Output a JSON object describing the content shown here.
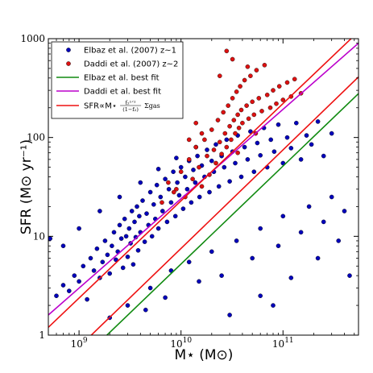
{
  "chart_data": {
    "type": "scatter",
    "title": "",
    "xlabel": "M⋆ (M⊙)",
    "ylabel": "SFR (M⊙ yr⁻¹)",
    "xscale": "log",
    "yscale": "log",
    "xlim": [
      500000000.0,
      550000000000.0
    ],
    "ylim": [
      1,
      1000
    ],
    "x_ticks": [
      {
        "value": 1000000000.0,
        "base": "10",
        "exp": "9"
      },
      {
        "value": 10000000000.0,
        "base": "10",
        "exp": "10"
      },
      {
        "value": 100000000000.0,
        "base": "10",
        "exp": "11"
      }
    ],
    "y_ticks": [
      {
        "value": 1,
        "label": "1"
      },
      {
        "value": 10,
        "label": "10"
      },
      {
        "value": 100,
        "label": "100"
      },
      {
        "value": 1000,
        "label": "1000"
      }
    ],
    "grid": false,
    "legend_position": "top-left",
    "colors": {
      "elbaz": "#0000bb",
      "daddi": "#dd1111",
      "green": "#108a10",
      "magenta": "#bb00cc",
      "red": "#ee1111"
    },
    "scatter_series": [
      {
        "name": "Elbaz et al. (2007) z~1",
        "marker_color": "#0000bb",
        "points": [
          [
            600000000.0,
            2.5
          ],
          [
            700000000.0,
            3.2
          ],
          [
            800000000.0,
            2.8
          ],
          [
            900000000.0,
            4.0
          ],
          [
            1000000000.0,
            3.5
          ],
          [
            1100000000.0,
            5.0
          ],
          [
            1200000000.0,
            2.3
          ],
          [
            1300000000.0,
            6.0
          ],
          [
            1400000000.0,
            4.5
          ],
          [
            1500000000.0,
            7.5
          ],
          [
            1600000000.0,
            3.8
          ],
          [
            1700000000.0,
            5.5
          ],
          [
            1800000000.0,
            9.0
          ],
          [
            1900000000.0,
            6.5
          ],
          [
            2000000000.0,
            4.2
          ],
          [
            2100000000.0,
            8.0
          ],
          [
            2200000000.0,
            11
          ],
          [
            2300000000.0,
            5.8
          ],
          [
            2400000000.0,
            7.0
          ],
          [
            2500000000.0,
            13
          ],
          [
            2600000000.0,
            9.5
          ],
          [
            2700000000.0,
            4.8
          ],
          [
            2800000000.0,
            15
          ],
          [
            2900000000.0,
            10
          ],
          [
            3000000000.0,
            6.2
          ],
          [
            3100000000.0,
            12
          ],
          [
            3200000000.0,
            8.5
          ],
          [
            3300000000.0,
            18
          ],
          [
            3400000000.0,
            5.2
          ],
          [
            3500000000.0,
            14
          ],
          [
            3600000000.0,
            9.8
          ],
          [
            3700000000.0,
            20
          ],
          [
            3800000000.0,
            7.2
          ],
          [
            3900000000.0,
            16
          ],
          [
            4000000000.0,
            11
          ],
          [
            4200000000.0,
            23
          ],
          [
            4400000000.0,
            8.8
          ],
          [
            4600000000.0,
            17
          ],
          [
            4800000000.0,
            13
          ],
          [
            5000000000.0,
            28
          ],
          [
            5200000000.0,
            10
          ],
          [
            5400000000.0,
            21
          ],
          [
            5600000000.0,
            15
          ],
          [
            5800000000.0,
            33
          ],
          [
            6000000000.0,
            12
          ],
          [
            6300000000.0,
            25
          ],
          [
            6600000000.0,
            18
          ],
          [
            7000000000.0,
            38
          ],
          [
            7300000000.0,
            14
          ],
          [
            7600000000.0,
            30
          ],
          [
            8000000000.0,
            22
          ],
          [
            8400000000.0,
            45
          ],
          [
            8800000000.0,
            16
          ],
          [
            9200000000.0,
            35
          ],
          [
            9600000000.0,
            26
          ],
          [
            10000000000.0,
            50
          ],
          [
            10500000000.0,
            19
          ],
          [
            11000000000.0,
            40
          ],
          [
            11500000000.0,
            30
          ],
          [
            12000000000.0,
            58
          ],
          [
            12600000000.0,
            22
          ],
          [
            13200000000.0,
            47
          ],
          [
            13800000000.0,
            35
          ],
          [
            14500000000.0,
            65
          ],
          [
            15200000000.0,
            25
          ],
          [
            16000000000.0,
            52
          ],
          [
            17000000000.0,
            40
          ],
          [
            18000000000.0,
            75
          ],
          [
            19000000000.0,
            28
          ],
          [
            20000000000.0,
            58
          ],
          [
            21000000000.0,
            45
          ],
          [
            22000000000.0,
            85
          ],
          [
            23500000000.0,
            32
          ],
          [
            25000000000.0,
            65
          ],
          [
            26500000000.0,
            50
          ],
          [
            28000000000.0,
            95
          ],
          [
            30000000000.0,
            36
          ],
          [
            32000000000.0,
            72
          ],
          [
            34000000000.0,
            55
          ],
          [
            36000000000.0,
            105
          ],
          [
            39000000000.0,
            40
          ],
          [
            42000000000.0,
            80
          ],
          [
            45000000000.0,
            60
          ],
          [
            48000000000.0,
            115
          ],
          [
            52000000000.0,
            45
          ],
          [
            56000000000.0,
            88
          ],
          [
            60000000000.0,
            66
          ],
          [
            65000000000.0,
            125
          ],
          [
            70000000000.0,
            50
          ],
          [
            76000000000.0,
            95
          ],
          [
            82000000000.0,
            72
          ],
          [
            90000000000.0,
            135
          ],
          [
            100000000000.0,
            55
          ],
          [
            110000000000.0,
            100
          ],
          [
            120000000000.0,
            78
          ],
          [
            135000000000.0,
            140
          ],
          [
            150000000000.0,
            60
          ],
          [
            170000000000.0,
            105
          ],
          [
            190000000000.0,
            85
          ],
          [
            220000000000.0,
            145
          ],
          [
            250000000000.0,
            65
          ],
          [
            300000000000.0,
            110
          ],
          [
            2000000000.0,
            1.5
          ],
          [
            3000000000.0,
            2.0
          ],
          [
            5000000000.0,
            3.0
          ],
          [
            8000000000.0,
            4.5
          ],
          [
            12000000000.0,
            5.5
          ],
          [
            20000000000.0,
            7.0
          ],
          [
            35000000000.0,
            9.0
          ],
          [
            60000000000.0,
            12
          ],
          [
            100000000000.0,
            16
          ],
          [
            180000000000.0,
            20
          ],
          [
            300000000000.0,
            25
          ],
          [
            4500000000.0,
            1.8
          ],
          [
            7000000000.0,
            2.4
          ],
          [
            15000000000.0,
            3.5
          ],
          [
            25000000000.0,
            4.0
          ],
          [
            50000000000.0,
            6.0
          ],
          [
            90000000000.0,
            8.0
          ],
          [
            150000000000.0,
            11
          ],
          [
            250000000000.0,
            14
          ],
          [
            60000000000.0,
            2.5
          ],
          [
            120000000000.0,
            3.8
          ],
          [
            220000000000.0,
            6.0
          ],
          [
            350000000000.0,
            9.0
          ],
          [
            30000000000.0,
            1.6
          ],
          [
            80000000000.0,
            2.0
          ],
          [
            400000000000.0,
            18
          ],
          [
            450000000000.0,
            4.0
          ],
          [
            1600000000.0,
            18
          ],
          [
            2500000000.0,
            25
          ],
          [
            4000000000.0,
            35
          ],
          [
            6000000000.0,
            48
          ],
          [
            9000000000.0,
            62
          ],
          [
            14000000000.0,
            80
          ],
          [
            1000000000.0,
            12
          ],
          [
            700000000.0,
            8
          ],
          [
            520000000.0,
            9.5
          ]
        ]
      },
      {
        "name": "Daddi et al. (2007) z~2",
        "marker_color": "#dd1111",
        "points": [
          [
            9000000000.0,
            30
          ],
          [
            10000000000.0,
            45
          ],
          [
            11000000000.0,
            25
          ],
          [
            12000000000.0,
            60
          ],
          [
            13000000000.0,
            38
          ],
          [
            14000000000.0,
            80
          ],
          [
            15000000000.0,
            50
          ],
          [
            16000000000.0,
            32
          ],
          [
            17000000000.0,
            95
          ],
          [
            18000000000.0,
            65
          ],
          [
            19000000000.0,
            42
          ],
          [
            20000000000.0,
            120
          ],
          [
            21000000000.0,
            75
          ],
          [
            22000000000.0,
            55
          ],
          [
            23000000000.0,
            150
          ],
          [
            24000000000.0,
            90
          ],
          [
            25000000000.0,
            68
          ],
          [
            26000000000.0,
            180
          ],
          [
            27000000000.0,
            110
          ],
          [
            28000000000.0,
            80
          ],
          [
            29000000000.0,
            210
          ],
          [
            30000000000.0,
            130
          ],
          [
            31000000000.0,
            95
          ],
          [
            32000000000.0,
            250
          ],
          [
            33000000000.0,
            150
          ],
          [
            34000000000.0,
            110
          ],
          [
            35000000000.0,
            290
          ],
          [
            36000000000.0,
            170
          ],
          [
            37000000000.0,
            125
          ],
          [
            38000000000.0,
            330
          ],
          [
            39000000000.0,
            190
          ],
          [
            40000000000.0,
            140
          ],
          [
            42000000000.0,
            380
          ],
          [
            44000000000.0,
            210
          ],
          [
            46000000000.0,
            155
          ],
          [
            48000000000.0,
            420
          ],
          [
            50000000000.0,
            230
          ],
          [
            52000000000.0,
            170
          ],
          [
            55000000000.0,
            480
          ],
          [
            58000000000.0,
            250
          ],
          [
            62000000000.0,
            185
          ],
          [
            66000000000.0,
            540
          ],
          [
            70000000000.0,
            270
          ],
          [
            75000000000.0,
            200
          ],
          [
            80000000000.0,
            300
          ],
          [
            86000000000.0,
            220
          ],
          [
            92000000000.0,
            330
          ],
          [
            100000000000.0,
            240
          ],
          [
            110000000000.0,
            360
          ],
          [
            120000000000.0,
            260
          ],
          [
            130000000000.0,
            390
          ],
          [
            150000000000.0,
            280
          ],
          [
            24000000000.0,
            420
          ],
          [
            32000000000.0,
            620
          ],
          [
            28000000000.0,
            750
          ],
          [
            45000000000.0,
            520
          ],
          [
            6500000000.0,
            22
          ],
          [
            7500000000.0,
            35
          ],
          [
            8500000000.0,
            28
          ],
          [
            16000000000.0,
            110
          ],
          [
            14000000000.0,
            140
          ],
          [
            12000000000.0,
            95
          ],
          [
            36000000000.0,
            70
          ],
          [
            54000000000.0,
            110
          ]
        ]
      }
    ],
    "line_series": [
      {
        "name": "Elbaz et al. best fit",
        "color": "#108a10",
        "x": [
          500000000.0,
          550000000000.0
        ],
        "y": [
          0.27,
          278
        ]
      },
      {
        "name": "Daddi et al. best fit",
        "color": "#bb00cc",
        "x": [
          500000000.0,
          550000000000.0
        ],
        "y": [
          1.6,
          900
        ]
      },
      {
        "name": "SFR∝M⋆",
        "color": "#ee1111",
        "x": [
          500000000.0,
          550000000000.0
        ],
        "y": [
          1.2,
          1180
        ]
      },
      {
        "name": "",
        "color": "#ee1111",
        "x": [
          500000000.0,
          550000000000.0
        ],
        "y": [
          0.38,
          410
        ]
      }
    ],
    "legend": [
      {
        "label": "Elbaz et al. (2007) z∼1",
        "kind": "dot",
        "color": "#0000bb"
      },
      {
        "label": "Daddi et al. (2007) z∼2",
        "kind": "dot",
        "color": "#dd1111"
      },
      {
        "label": "Elbaz et al. best fit",
        "kind": "line",
        "color": "#108a10"
      },
      {
        "label": "Daddi et al. best fit",
        "kind": "line",
        "color": "#bb00cc"
      },
      {
        "label": "SFR∝M⋆",
        "kind": "line",
        "color": "#ee1111",
        "math": {
          "frac_num": "f₂¹ᐟ²",
          "frac_den": "(1−f₂)",
          "term": "Σgas"
        }
      }
    ]
  }
}
